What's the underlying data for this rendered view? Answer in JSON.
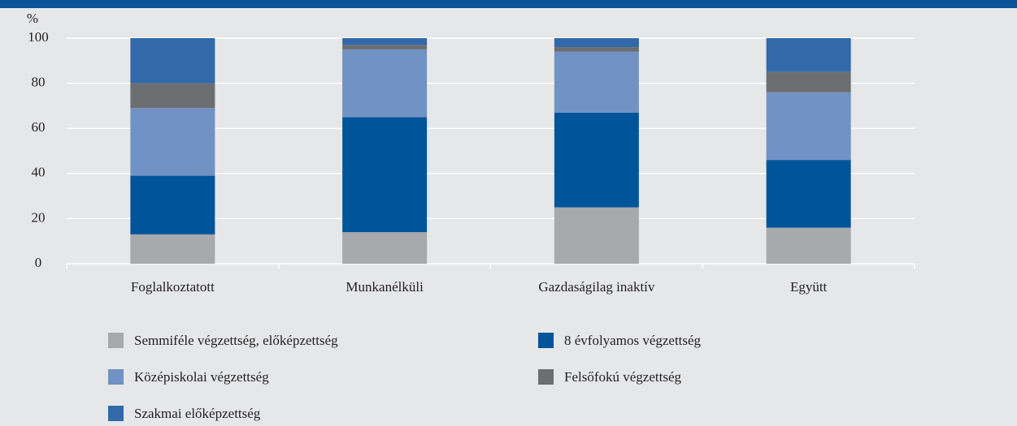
{
  "chart_data": {
    "type": "stacked_bar",
    "y_label": "%",
    "categories": [
      "Foglalkoztatott",
      "Munkanélküli",
      "Gazdaságilag inaktív",
      "Együtt"
    ],
    "series": [
      {
        "name": "Semmiféle végzettség, előképzettség",
        "color": "#a7a9ac",
        "values": [
          13,
          14,
          25,
          16
        ]
      },
      {
        "name": "8 évfolyamos végzettség",
        "color": "#00559a",
        "values": [
          26,
          51,
          42,
          30
        ]
      },
      {
        "name": "Középiskolai végzettség",
        "color": "#7092c4",
        "values": [
          30,
          30,
          27,
          30
        ]
      },
      {
        "name": "Felsőfokú végzettség",
        "color": "#6d6e71",
        "values": [
          11,
          2,
          2,
          9
        ]
      },
      {
        "name": "Szakmai előképzettség",
        "color": "#3169a9",
        "values": [
          20,
          3,
          4,
          15
        ]
      }
    ],
    "ylim": [
      0,
      100
    ],
    "yticks": [
      0,
      20,
      40,
      60,
      80,
      100
    ],
    "grid": true
  }
}
